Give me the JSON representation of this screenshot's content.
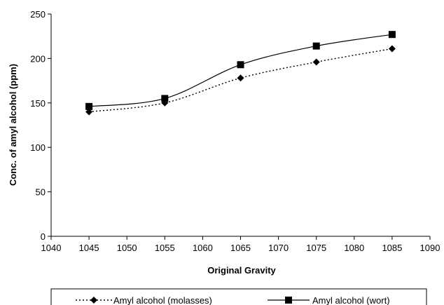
{
  "chart_data": {
    "type": "line",
    "title": "",
    "xlabel": "Original Gravity",
    "ylabel": "Conc. of amyl alcohol (ppm)",
    "xlim": [
      1040,
      1090
    ],
    "ylim": [
      0,
      250
    ],
    "x_ticks": [
      1040,
      1045,
      1050,
      1055,
      1060,
      1065,
      1070,
      1075,
      1080,
      1085,
      1090
    ],
    "y_ticks": [
      0,
      50,
      100,
      150,
      200,
      250
    ],
    "grid": false,
    "legend_position": "bottom",
    "series": [
      {
        "name": "Amyl alcohol (molasses)",
        "marker": "diamond",
        "line_style": "dotted",
        "color": "#000000",
        "x": [
          1045,
          1055,
          1065,
          1075,
          1085
        ],
        "y": [
          140,
          150,
          178,
          196,
          211
        ]
      },
      {
        "name": "Amyl alcohol (wort)",
        "marker": "square",
        "line_style": "solid",
        "color": "#000000",
        "x": [
          1045,
          1055,
          1065,
          1075,
          1085
        ],
        "y": [
          146,
          155,
          193,
          214,
          227
        ]
      }
    ]
  }
}
